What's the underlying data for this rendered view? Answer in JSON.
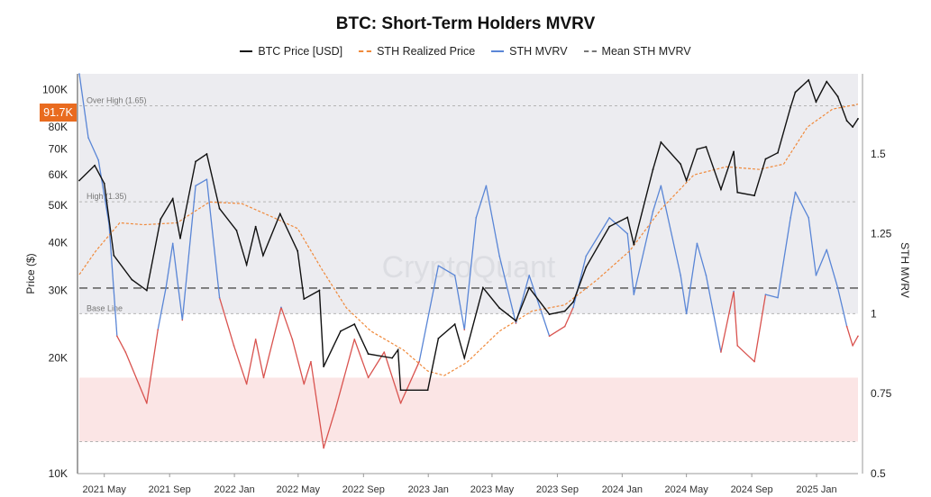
{
  "chart_data": {
    "type": "line",
    "title": "BTC: Short-Term Holders MVRV",
    "legend": [
      {
        "name": "BTC Price [USD]",
        "color": "#111111",
        "style": "solid"
      },
      {
        "name": "STH Realized Price",
        "color": "#f08a3c",
        "style": "dashed"
      },
      {
        "name": "STH MVRV",
        "color": "#5a86d6",
        "style": "solid"
      },
      {
        "name": "Mean STH MVRV",
        "color": "#777777",
        "style": "dashed"
      }
    ],
    "y_left": {
      "label": "Price ($)",
      "scale": "log",
      "range": [
        10000,
        110000
      ],
      "ticks": [
        {
          "v": 10000,
          "t": "10K"
        },
        {
          "v": 20000,
          "t": "20K"
        },
        {
          "v": 30000,
          "t": "30K"
        },
        {
          "v": 40000,
          "t": "40K"
        },
        {
          "v": 50000,
          "t": "50K"
        },
        {
          "v": 60000,
          "t": "60K"
        },
        {
          "v": 70000,
          "t": "70K"
        },
        {
          "v": 80000,
          "t": "80K"
        },
        {
          "v": 100000,
          "t": "100K"
        }
      ]
    },
    "y_right": {
      "label": "STH MVRV",
      "scale": "linear",
      "range": [
        0.5,
        1.75
      ],
      "ticks": [
        {
          "v": 0.5,
          "t": "0.5"
        },
        {
          "v": 0.75,
          "t": "0.75"
        },
        {
          "v": 1,
          "t": "1"
        },
        {
          "v": 1.25,
          "t": "1.25"
        },
        {
          "v": 1.5,
          "t": "1.5"
        }
      ]
    },
    "x_axis": {
      "range": [
        "2021-03-15",
        "2025-03-20"
      ],
      "ticks": [
        {
          "d": "2021-05-01",
          "t": "2021 May"
        },
        {
          "d": "2021-09-01",
          "t": "2021 Sep"
        },
        {
          "d": "2022-01-01",
          "t": "2022 Jan"
        },
        {
          "d": "2022-05-01",
          "t": "2022 May"
        },
        {
          "d": "2022-09-01",
          "t": "2022 Sep"
        },
        {
          "d": "2023-01-01",
          "t": "2023 Jan"
        },
        {
          "d": "2023-05-01",
          "t": "2023 May"
        },
        {
          "d": "2023-09-01",
          "t": "2023 Sep"
        },
        {
          "d": "2024-01-01",
          "t": "2024 Jan"
        },
        {
          "d": "2024-05-01",
          "t": "2024 May"
        },
        {
          "d": "2024-09-01",
          "t": "2024 Sep"
        },
        {
          "d": "2025-01-01",
          "t": "2025 Jan"
        }
      ]
    },
    "reference_lines": [
      {
        "label": "Over High (1.65)",
        "value": 1.65
      },
      {
        "label": "High (1.35)",
        "value": 1.35
      },
      {
        "label": "Base Line",
        "value": 1.0
      },
      {
        "label": "",
        "value": 0.6
      }
    ],
    "mean_sth_mvrv": 1.08,
    "zones": [
      {
        "from": 1.0,
        "to": 1.75,
        "color": "#ececf0"
      },
      {
        "from": 0.6,
        "to": 0.8,
        "color": "#fbe5e5"
      }
    ],
    "current_price_label": "91.7K",
    "series": [
      {
        "name": "BTC Price [USD]",
        "color": "#111111",
        "points": [
          [
            "2021-03-15",
            58000
          ],
          [
            "2021-04-13",
            63500
          ],
          [
            "2021-05-01",
            57000
          ],
          [
            "2021-05-19",
            37000
          ],
          [
            "2021-06-22",
            32000
          ],
          [
            "2021-07-20",
            30000
          ],
          [
            "2021-08-15",
            46000
          ],
          [
            "2021-09-07",
            52000
          ],
          [
            "2021-09-21",
            41000
          ],
          [
            "2021-10-20",
            65000
          ],
          [
            "2021-11-10",
            68000
          ],
          [
            "2021-12-04",
            49000
          ],
          [
            "2022-01-05",
            43000
          ],
          [
            "2022-01-24",
            35000
          ],
          [
            "2022-02-10",
            44000
          ],
          [
            "2022-02-24",
            37000
          ],
          [
            "2022-03-28",
            47500
          ],
          [
            "2022-04-30",
            38000
          ],
          [
            "2022-05-12",
            28500
          ],
          [
            "2022-06-10",
            30000
          ],
          [
            "2022-06-18",
            19000
          ],
          [
            "2022-07-20",
            23500
          ],
          [
            "2022-08-15",
            24500
          ],
          [
            "2022-09-10",
            20500
          ],
          [
            "2022-10-25",
            20000
          ],
          [
            "2022-11-05",
            21000
          ],
          [
            "2022-11-10",
            16500
          ],
          [
            "2022-12-31",
            16500
          ],
          [
            "2023-01-20",
            22500
          ],
          [
            "2023-02-20",
            24500
          ],
          [
            "2023-03-10",
            20000
          ],
          [
            "2023-04-14",
            30500
          ],
          [
            "2023-05-15",
            27000
          ],
          [
            "2023-06-15",
            25000
          ],
          [
            "2023-07-10",
            30500
          ],
          [
            "2023-08-17",
            26000
          ],
          [
            "2023-09-15",
            26500
          ],
          [
            "2023-10-01",
            28000
          ],
          [
            "2023-10-25",
            34500
          ],
          [
            "2023-12-08",
            44000
          ],
          [
            "2024-01-11",
            46500
          ],
          [
            "2024-01-23",
            39500
          ],
          [
            "2024-02-28",
            62000
          ],
          [
            "2024-03-14",
            73000
          ],
          [
            "2024-04-20",
            64000
          ],
          [
            "2024-05-01",
            58000
          ],
          [
            "2024-05-21",
            70000
          ],
          [
            "2024-06-07",
            71000
          ],
          [
            "2024-07-05",
            55000
          ],
          [
            "2024-07-29",
            69000
          ],
          [
            "2024-08-05",
            54000
          ],
          [
            "2024-09-06",
            53000
          ],
          [
            "2024-09-27",
            66000
          ],
          [
            "2024-10-20",
            68500
          ],
          [
            "2024-11-13",
            90000
          ],
          [
            "2024-11-22",
            98500
          ],
          [
            "2024-12-17",
            106000
          ],
          [
            "2024-12-31",
            93000
          ],
          [
            "2025-01-20",
            105000
          ],
          [
            "2025-02-10",
            96000
          ],
          [
            "2025-02-27",
            83000
          ],
          [
            "2025-03-10",
            80000
          ],
          [
            "2025-03-20",
            84000
          ]
        ]
      },
      {
        "name": "STH Realized Price",
        "color": "#f08a3c",
        "points": [
          [
            "2021-03-15",
            33000
          ],
          [
            "2021-04-15",
            38000
          ],
          [
            "2021-05-30",
            45000
          ],
          [
            "2021-07-15",
            44500
          ],
          [
            "2021-09-15",
            45000
          ],
          [
            "2021-11-15",
            51000
          ],
          [
            "2022-01-15",
            50500
          ],
          [
            "2022-03-15",
            46500
          ],
          [
            "2022-04-30",
            43500
          ],
          [
            "2022-06-15",
            34000
          ],
          [
            "2022-07-31",
            27000
          ],
          [
            "2022-09-15",
            23500
          ],
          [
            "2022-11-15",
            21000
          ],
          [
            "2022-12-31",
            18500
          ],
          [
            "2023-01-31",
            18000
          ],
          [
            "2023-03-15",
            19500
          ],
          [
            "2023-05-15",
            23500
          ],
          [
            "2023-07-15",
            26500
          ],
          [
            "2023-09-15",
            27500
          ],
          [
            "2023-11-15",
            32000
          ],
          [
            "2024-01-15",
            38000
          ],
          [
            "2024-03-15",
            49000
          ],
          [
            "2024-05-15",
            60000
          ],
          [
            "2024-07-15",
            63000
          ],
          [
            "2024-09-15",
            62000
          ],
          [
            "2024-10-31",
            64000
          ],
          [
            "2024-12-15",
            80000
          ],
          [
            "2025-01-31",
            89000
          ],
          [
            "2025-03-20",
            91700
          ]
        ]
      },
      {
        "name": "STH MVRV",
        "color": "#5a86d6",
        "color_below_base": "#d9534f",
        "points": [
          [
            "2021-03-15",
            1.75
          ],
          [
            "2021-04-01",
            1.55
          ],
          [
            "2021-04-20",
            1.48
          ],
          [
            "2021-05-10",
            1.28
          ],
          [
            "2021-05-25",
            0.93
          ],
          [
            "2021-06-10",
            0.88
          ],
          [
            "2021-07-20",
            0.72
          ],
          [
            "2021-08-10",
            0.95
          ],
          [
            "2021-08-25",
            1.08
          ],
          [
            "2021-09-07",
            1.22
          ],
          [
            "2021-09-25",
            0.98
          ],
          [
            "2021-10-20",
            1.4
          ],
          [
            "2021-11-10",
            1.42
          ],
          [
            "2021-12-04",
            1.05
          ],
          [
            "2021-12-31",
            0.9
          ],
          [
            "2022-01-24",
            0.78
          ],
          [
            "2022-02-10",
            0.92
          ],
          [
            "2022-02-25",
            0.8
          ],
          [
            "2022-03-30",
            1.02
          ],
          [
            "2022-04-20",
            0.92
          ],
          [
            "2022-05-12",
            0.78
          ],
          [
            "2022-05-25",
            0.85
          ],
          [
            "2022-06-18",
            0.58
          ],
          [
            "2022-07-10",
            0.7
          ],
          [
            "2022-08-15",
            0.92
          ],
          [
            "2022-09-10",
            0.8
          ],
          [
            "2022-10-10",
            0.88
          ],
          [
            "2022-11-10",
            0.72
          ],
          [
            "2022-12-15",
            0.85
          ],
          [
            "2023-01-20",
            1.15
          ],
          [
            "2023-02-20",
            1.12
          ],
          [
            "2023-03-10",
            0.95
          ],
          [
            "2023-04-01",
            1.3
          ],
          [
            "2023-04-20",
            1.4
          ],
          [
            "2023-05-15",
            1.18
          ],
          [
            "2023-06-15",
            0.97
          ],
          [
            "2023-07-10",
            1.12
          ],
          [
            "2023-08-17",
            0.93
          ],
          [
            "2023-09-15",
            0.96
          ],
          [
            "2023-10-01",
            1.02
          ],
          [
            "2023-10-25",
            1.18
          ],
          [
            "2023-12-08",
            1.3
          ],
          [
            "2024-01-11",
            1.25
          ],
          [
            "2024-01-23",
            1.06
          ],
          [
            "2024-02-28",
            1.32
          ],
          [
            "2024-03-14",
            1.4
          ],
          [
            "2024-04-20",
            1.12
          ],
          [
            "2024-05-01",
            1.0
          ],
          [
            "2024-05-21",
            1.22
          ],
          [
            "2024-06-07",
            1.12
          ],
          [
            "2024-07-05",
            0.88
          ],
          [
            "2024-07-29",
            1.07
          ],
          [
            "2024-08-05",
            0.9
          ],
          [
            "2024-09-06",
            0.85
          ],
          [
            "2024-09-27",
            1.06
          ],
          [
            "2024-10-20",
            1.05
          ],
          [
            "2024-11-13",
            1.3
          ],
          [
            "2024-11-22",
            1.38
          ],
          [
            "2024-12-17",
            1.3
          ],
          [
            "2024-12-31",
            1.12
          ],
          [
            "2025-01-20",
            1.2
          ],
          [
            "2025-02-10",
            1.08
          ],
          [
            "2025-02-27",
            0.96
          ],
          [
            "2025-03-10",
            0.9
          ],
          [
            "2025-03-20",
            0.93
          ]
        ]
      }
    ]
  }
}
